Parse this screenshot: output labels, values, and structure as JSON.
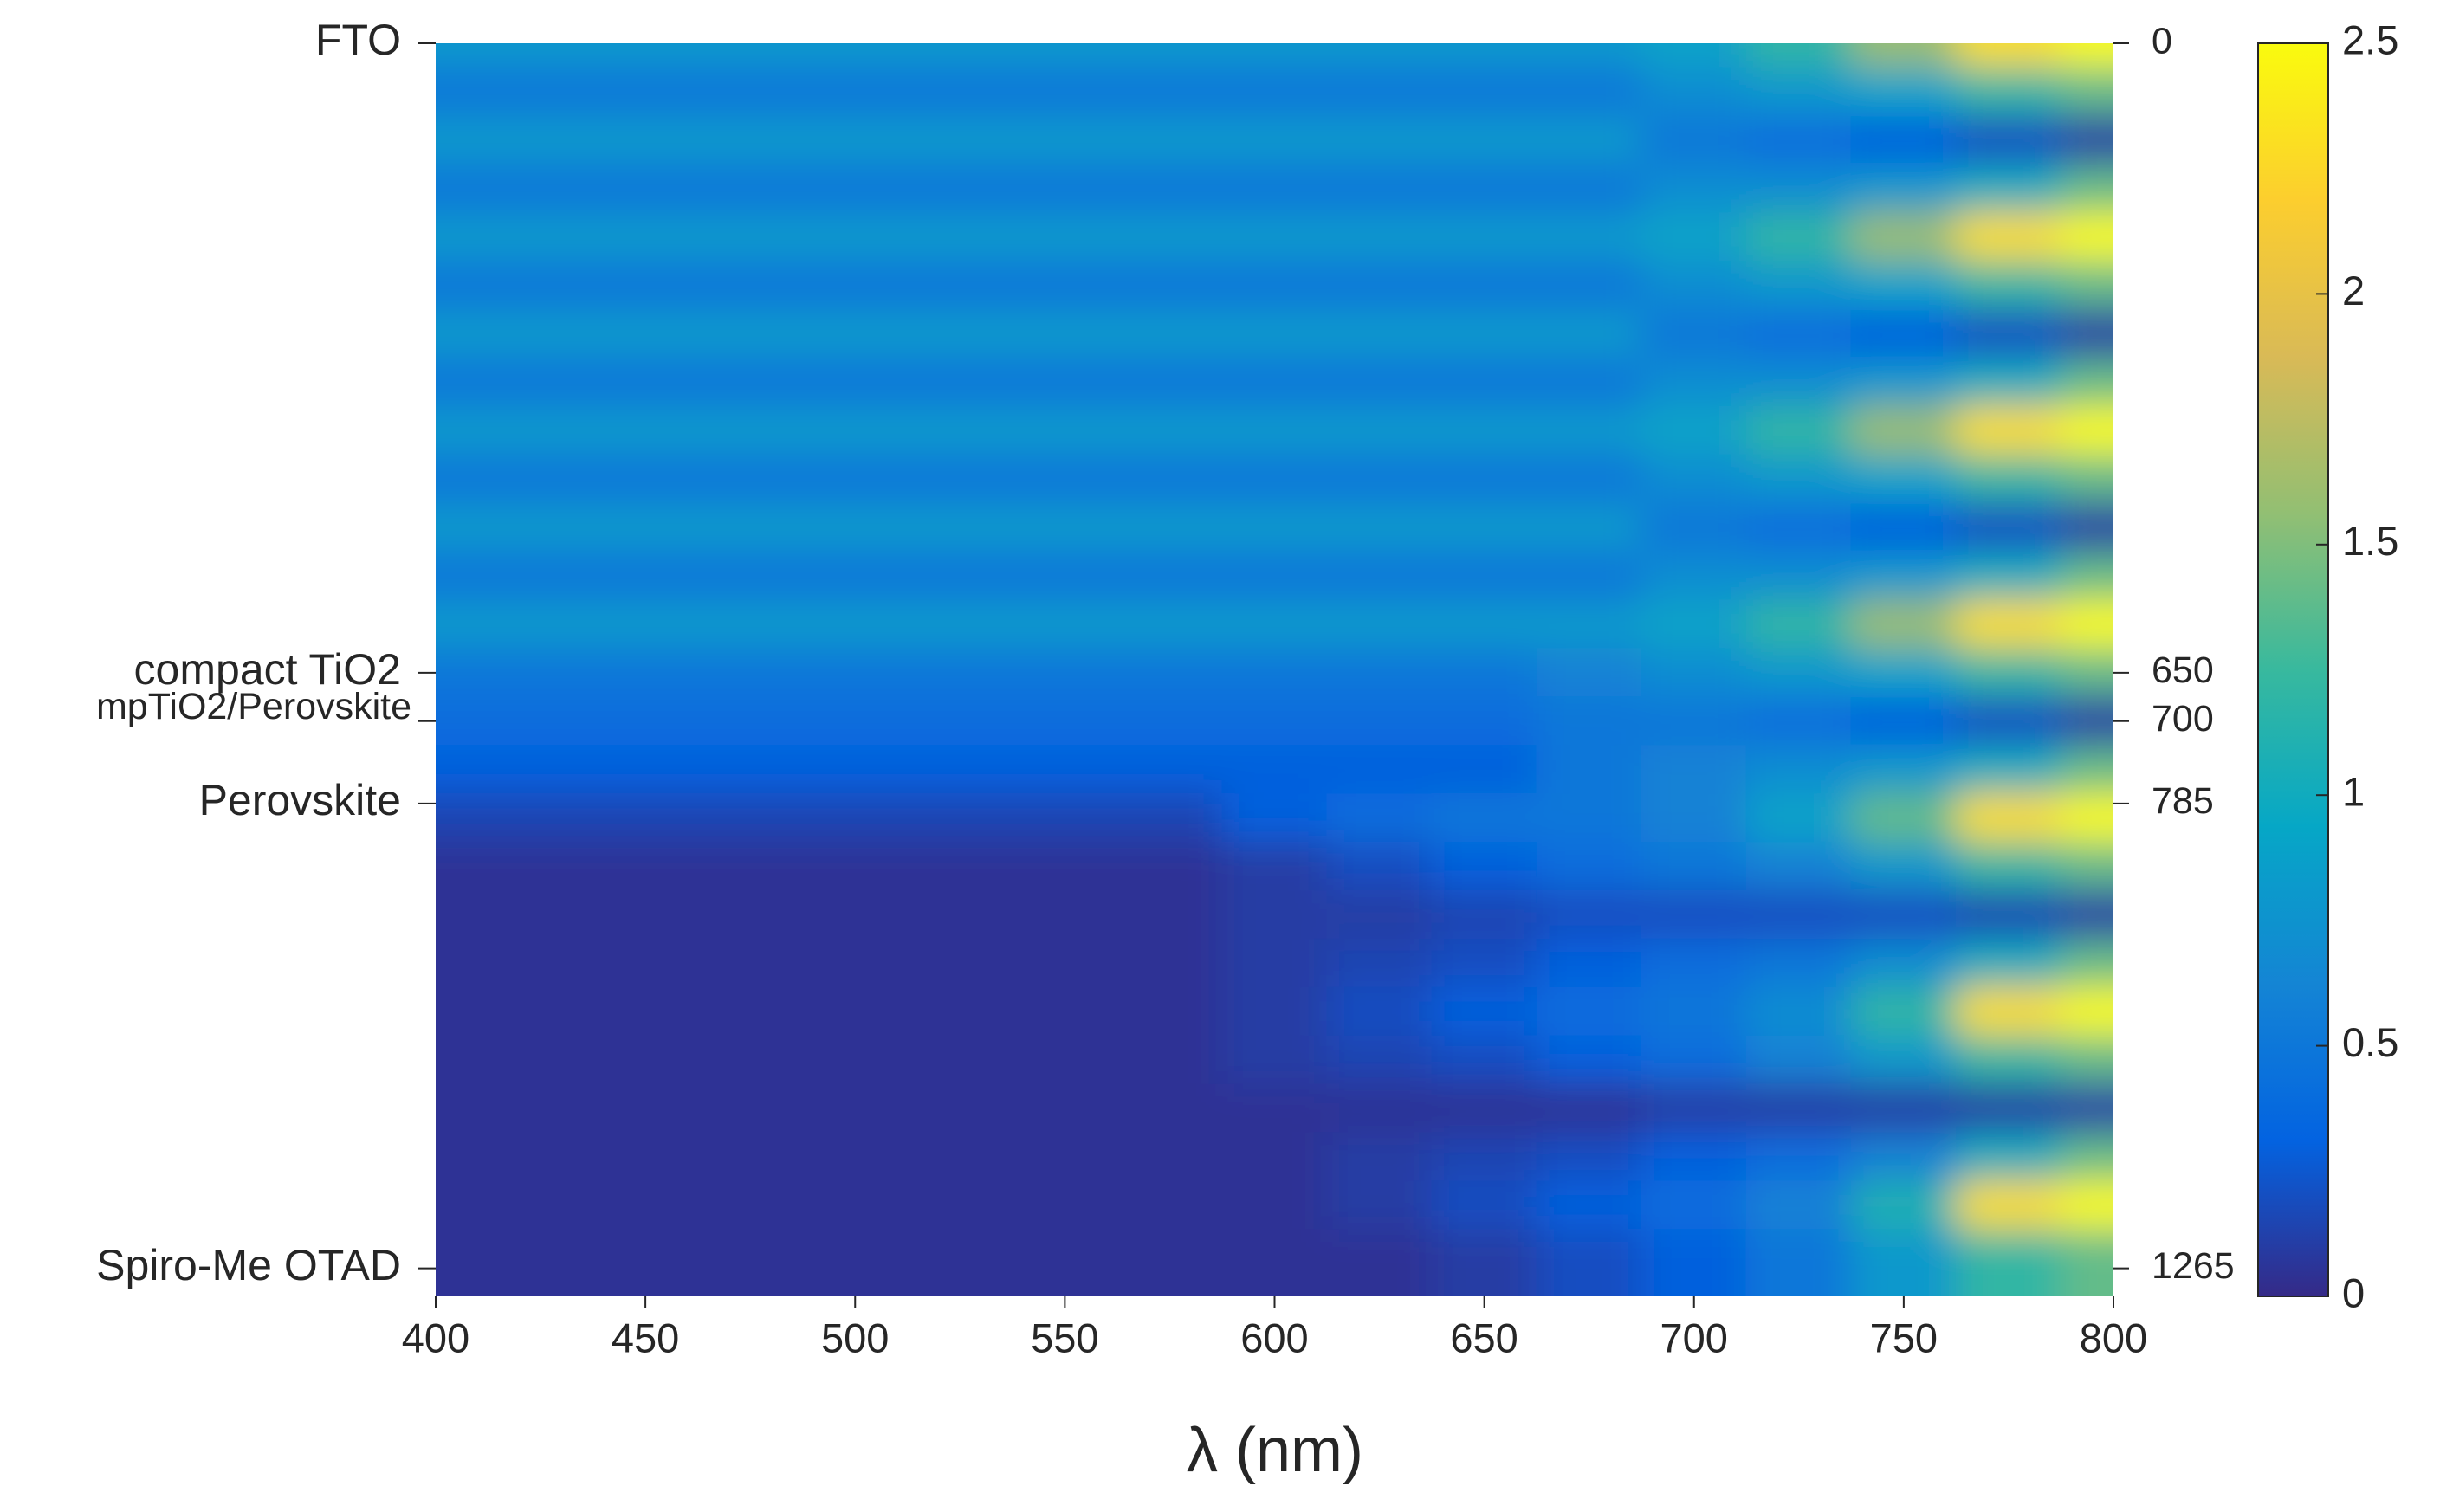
{
  "chart_data": {
    "type": "heatmap",
    "xlabel": "λ (nm)",
    "x": [
      400,
      425,
      450,
      475,
      500,
      525,
      550,
      575,
      600,
      625,
      650,
      675,
      700,
      725,
      750,
      775,
      800
    ],
    "y": [
      0,
      50,
      100,
      150,
      200,
      250,
      300,
      350,
      400,
      450,
      500,
      550,
      600,
      650,
      700,
      750,
      800,
      850,
      900,
      950,
      1000,
      1050,
      1100,
      1150,
      1200,
      1250
    ],
    "z": [
      [
        0.8,
        0.8,
        0.8,
        0.8,
        0.8,
        0.8,
        0.8,
        0.8,
        0.8,
        0.8,
        0.8,
        0.8,
        0.9,
        1.2,
        1.6,
        2.3,
        2.5
      ],
      [
        0.5,
        0.5,
        0.5,
        0.5,
        0.5,
        0.5,
        0.5,
        0.5,
        0.5,
        0.5,
        0.5,
        0.5,
        0.7,
        0.8,
        0.9,
        1.2,
        1.4
      ],
      [
        0.8,
        0.8,
        0.8,
        0.8,
        0.8,
        0.8,
        0.8,
        0.8,
        0.8,
        0.8,
        0.8,
        0.8,
        0.5,
        0.4,
        0.3,
        0.2,
        0.1
      ],
      [
        0.5,
        0.5,
        0.5,
        0.5,
        0.5,
        0.5,
        0.5,
        0.5,
        0.5,
        0.5,
        0.5,
        0.5,
        0.7,
        0.7,
        0.8,
        1.0,
        1.4
      ],
      [
        0.8,
        0.8,
        0.8,
        0.8,
        0.8,
        0.8,
        0.8,
        0.8,
        0.8,
        0.8,
        0.8,
        0.8,
        0.9,
        1.2,
        1.6,
        2.3,
        2.5
      ],
      [
        0.5,
        0.5,
        0.5,
        0.5,
        0.5,
        0.5,
        0.5,
        0.5,
        0.5,
        0.5,
        0.5,
        0.5,
        0.7,
        0.8,
        0.9,
        1.2,
        1.4
      ],
      [
        0.8,
        0.8,
        0.8,
        0.8,
        0.8,
        0.8,
        0.8,
        0.8,
        0.8,
        0.8,
        0.8,
        0.8,
        0.5,
        0.4,
        0.3,
        0.2,
        0.1
      ],
      [
        0.5,
        0.5,
        0.5,
        0.5,
        0.5,
        0.5,
        0.5,
        0.5,
        0.5,
        0.5,
        0.5,
        0.5,
        0.7,
        0.7,
        0.8,
        1.0,
        1.4
      ],
      [
        0.8,
        0.8,
        0.8,
        0.8,
        0.8,
        0.8,
        0.8,
        0.8,
        0.8,
        0.8,
        0.8,
        0.8,
        0.9,
        1.2,
        1.6,
        2.3,
        2.5
      ],
      [
        0.5,
        0.5,
        0.5,
        0.5,
        0.5,
        0.5,
        0.5,
        0.5,
        0.5,
        0.5,
        0.5,
        0.5,
        0.7,
        0.8,
        0.9,
        1.2,
        1.4
      ],
      [
        0.8,
        0.8,
        0.8,
        0.8,
        0.8,
        0.8,
        0.8,
        0.8,
        0.8,
        0.8,
        0.8,
        0.8,
        0.5,
        0.4,
        0.3,
        0.2,
        0.1
      ],
      [
        0.5,
        0.5,
        0.5,
        0.5,
        0.5,
        0.5,
        0.5,
        0.5,
        0.5,
        0.5,
        0.5,
        0.5,
        0.7,
        0.7,
        0.8,
        1.0,
        1.4
      ],
      [
        0.8,
        0.8,
        0.8,
        0.8,
        0.8,
        0.8,
        0.8,
        0.8,
        0.8,
        0.8,
        0.8,
        0.8,
        0.9,
        1.2,
        1.6,
        2.3,
        2.5
      ],
      [
        0.5,
        0.5,
        0.5,
        0.5,
        0.5,
        0.5,
        0.5,
        0.5,
        0.5,
        0.5,
        0.5,
        0.6,
        0.7,
        0.8,
        0.9,
        1.2,
        1.4
      ],
      [
        0.4,
        0.4,
        0.4,
        0.4,
        0.4,
        0.4,
        0.4,
        0.4,
        0.4,
        0.4,
        0.4,
        0.5,
        0.5,
        0.4,
        0.3,
        0.2,
        0.1
      ],
      [
        0.3,
        0.3,
        0.3,
        0.3,
        0.3,
        0.3,
        0.3,
        0.3,
        0.3,
        0.3,
        0.3,
        0.5,
        0.6,
        0.7,
        0.8,
        1.0,
        1.4
      ],
      [
        0.15,
        0.15,
        0.15,
        0.15,
        0.15,
        0.15,
        0.15,
        0.15,
        0.3,
        0.4,
        0.5,
        0.5,
        0.6,
        0.9,
        1.4,
        2.3,
        2.5
      ],
      [
        0.05,
        0.05,
        0.05,
        0.05,
        0.05,
        0.05,
        0.05,
        0.05,
        0.1,
        0.2,
        0.3,
        0.4,
        0.5,
        0.6,
        0.8,
        1.2,
        1.4
      ],
      [
        0.05,
        0.05,
        0.05,
        0.05,
        0.05,
        0.05,
        0.05,
        0.05,
        0.1,
        0.1,
        0.15,
        0.2,
        0.2,
        0.2,
        0.2,
        0.15,
        0.1
      ],
      [
        0.05,
        0.05,
        0.05,
        0.05,
        0.05,
        0.05,
        0.05,
        0.05,
        0.1,
        0.15,
        0.2,
        0.3,
        0.4,
        0.5,
        0.7,
        1.0,
        1.4
      ],
      [
        0.05,
        0.05,
        0.05,
        0.05,
        0.05,
        0.05,
        0.05,
        0.05,
        0.1,
        0.2,
        0.3,
        0.4,
        0.5,
        0.7,
        1.2,
        2.3,
        2.5
      ],
      [
        0.05,
        0.05,
        0.05,
        0.05,
        0.05,
        0.05,
        0.05,
        0.05,
        0.1,
        0.15,
        0.2,
        0.3,
        0.4,
        0.6,
        0.8,
        1.2,
        1.4
      ],
      [
        0.05,
        0.05,
        0.05,
        0.05,
        0.05,
        0.05,
        0.05,
        0.05,
        0.05,
        0.05,
        0.05,
        0.05,
        0.1,
        0.1,
        0.1,
        0.1,
        0.1
      ],
      [
        0.05,
        0.05,
        0.05,
        0.05,
        0.05,
        0.05,
        0.05,
        0.05,
        0.05,
        0.1,
        0.15,
        0.2,
        0.3,
        0.4,
        0.6,
        1.0,
        1.4
      ],
      [
        0.05,
        0.05,
        0.05,
        0.05,
        0.05,
        0.05,
        0.05,
        0.05,
        0.05,
        0.1,
        0.2,
        0.3,
        0.4,
        0.6,
        1.1,
        2.3,
        2.5
      ],
      [
        0.05,
        0.05,
        0.05,
        0.05,
        0.05,
        0.05,
        0.05,
        0.05,
        0.05,
        0.05,
        0.1,
        0.2,
        0.3,
        0.5,
        0.8,
        1.2,
        1.4
      ]
    ],
    "xlim": [
      400,
      800
    ],
    "xticks": [
      400,
      450,
      500,
      550,
      600,
      650,
      700,
      750,
      800
    ],
    "ylim": [
      0,
      1294
    ],
    "yticks": [
      0,
      650,
      700,
      785,
      1265
    ],
    "layer_ticks": [
      {
        "value": 0,
        "label": "FTO"
      },
      {
        "value": 650,
        "label": "compact TiO2"
      },
      {
        "value": 700,
        "label": "mpTiO2/Perovskite"
      },
      {
        "value": 785,
        "label": "Perovskite"
      },
      {
        "value": 1265,
        "label": "Spiro-Me OTAD"
      }
    ],
    "clim": [
      0,
      2.5
    ],
    "cticks": [
      0,
      0.5,
      1,
      1.5,
      2,
      2.5
    ],
    "colormap": "parula"
  }
}
